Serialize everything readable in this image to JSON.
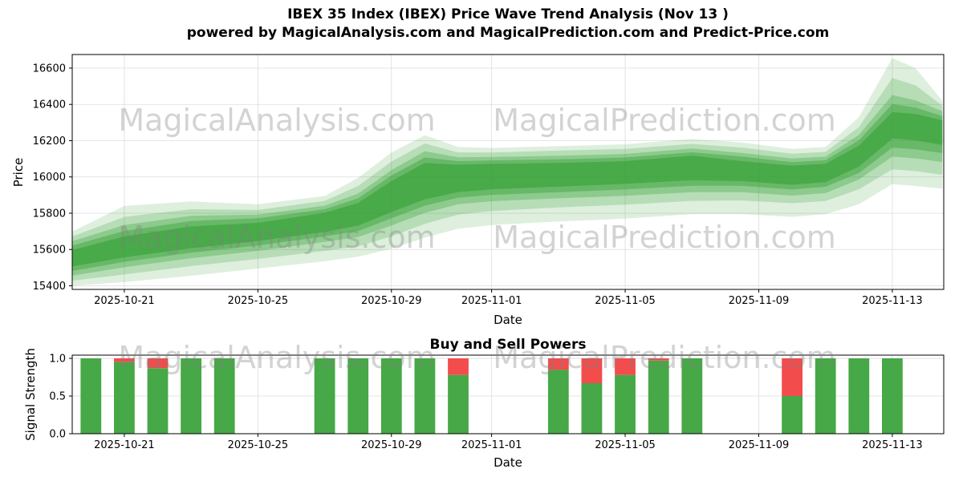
{
  "watermarks": {
    "left": "MagicalAnalysis.com",
    "right": "MagicalPrediction.com"
  },
  "chart_data": [
    {
      "type": "area",
      "title": "IBEX 35 Index (IBEX) Price Wave Trend Analysis (Nov 13 )",
      "subtitle": "powered by MagicalAnalysis.com and MagicalPrediction.com and Predict-Price.com",
      "xlabel": "Date",
      "ylabel": "Price",
      "x_unit": "days since 2025-10-19",
      "xlim": [
        0.44,
        26.54
      ],
      "ylim": [
        15380,
        16675
      ],
      "grid": true,
      "color": "#2f9e2f",
      "yticks": [
        15400,
        15600,
        15800,
        16000,
        16200,
        16400,
        16600
      ],
      "xticks": [
        {
          "t": 2,
          "label": "2025-10-21"
        },
        {
          "t": 6,
          "label": "2025-10-25"
        },
        {
          "t": 10,
          "label": "2025-10-29"
        },
        {
          "t": 13,
          "label": "2025-11-01"
        },
        {
          "t": 17,
          "label": "2025-11-05"
        },
        {
          "t": 21,
          "label": "2025-11-09"
        },
        {
          "t": 25,
          "label": "2025-11-13"
        }
      ],
      "bands": [
        {
          "name": "outer-band",
          "opacity": 0.16,
          "x": [
            0.45,
            2,
            4,
            6,
            8,
            9,
            10,
            11,
            12,
            13,
            15,
            17,
            19,
            20.5,
            22,
            23,
            24,
            25,
            25.7,
            26.5
          ],
          "upper": [
            15700,
            15840,
            15865,
            15850,
            15895,
            15995,
            16135,
            16230,
            16165,
            16160,
            16170,
            16180,
            16210,
            16190,
            16155,
            16165,
            16330,
            16655,
            16600,
            16420
          ],
          "lower": [
            15400,
            15420,
            15455,
            15495,
            15535,
            15560,
            15605,
            15665,
            15715,
            15735,
            15755,
            15770,
            15795,
            15795,
            15780,
            15795,
            15850,
            15960,
            15950,
            15935
          ]
        },
        {
          "name": "band-2",
          "opacity": 0.22,
          "x": [
            0.45,
            2,
            4,
            6,
            8,
            9,
            10,
            11,
            12,
            13,
            15,
            17,
            19,
            20.5,
            22,
            23,
            24,
            25,
            25.7,
            26.5
          ],
          "upper": [
            15672,
            15780,
            15822,
            15818,
            15868,
            15950,
            16085,
            16185,
            16135,
            16135,
            16145,
            16155,
            16182,
            16162,
            16128,
            16138,
            16275,
            16545,
            16505,
            16392
          ],
          "lower": [
            15428,
            15462,
            15508,
            15548,
            15592,
            15618,
            15672,
            15742,
            15792,
            15812,
            15832,
            15847,
            15868,
            15870,
            15855,
            15867,
            15932,
            16042,
            16032,
            16012
          ]
        },
        {
          "name": "band-3",
          "opacity": 0.3,
          "x": [
            0.45,
            2,
            4,
            6,
            8,
            9,
            10,
            11,
            12,
            13,
            15,
            17,
            19,
            20.5,
            22,
            23,
            24,
            25,
            25.7,
            26.5
          ],
          "upper": [
            15646,
            15735,
            15786,
            15792,
            15842,
            15908,
            16038,
            16142,
            16108,
            16110,
            16117,
            16127,
            16157,
            16132,
            16102,
            16112,
            16232,
            16452,
            16422,
            16362
          ],
          "lower": [
            15456,
            15502,
            15552,
            15592,
            15642,
            15668,
            15732,
            15802,
            15850,
            15866,
            15882,
            15896,
            15916,
            15916,
            15897,
            15911,
            15986,
            16112,
            16102,
            16082
          ]
        },
        {
          "name": "band-4",
          "opacity": 0.4,
          "x": [
            0.45,
            2,
            4,
            6,
            8,
            9,
            10,
            11,
            12,
            13,
            15,
            17,
            19,
            20.5,
            22,
            23,
            24,
            25,
            25.7,
            26.5
          ],
          "upper": [
            15622,
            15702,
            15757,
            15772,
            15822,
            15882,
            16008,
            16107,
            16087,
            16091,
            16097,
            16107,
            16136,
            16112,
            16082,
            16092,
            16202,
            16402,
            16382,
            16336
          ],
          "lower": [
            15482,
            15532,
            15582,
            15622,
            15672,
            15702,
            15772,
            15842,
            15886,
            15901,
            15916,
            15931,
            15951,
            15951,
            15931,
            15946,
            16022,
            16162,
            16152,
            16132
          ]
        },
        {
          "name": "core-band",
          "opacity": 0.55,
          "x": [
            0.45,
            2,
            4,
            6,
            8,
            9,
            10,
            11,
            12,
            13,
            15,
            17,
            19,
            20.5,
            22,
            23,
            24,
            25,
            25.7,
            26.5
          ],
          "upper": [
            15597,
            15672,
            15727,
            15747,
            15802,
            15857,
            15977,
            16077,
            16067,
            16072,
            16077,
            16087,
            16117,
            16087,
            16062,
            16072,
            16172,
            16357,
            16347,
            16312
          ],
          "lower": [
            15507,
            15557,
            15607,
            15647,
            15697,
            15732,
            15807,
            15877,
            15917,
            15932,
            15947,
            15962,
            15982,
            15977,
            15957,
            15972,
            16057,
            16212,
            16202,
            16177
          ]
        }
      ]
    },
    {
      "type": "bar",
      "title": "Buy and Sell Powers",
      "xlabel": "Date",
      "ylabel": "Signal Strength",
      "x_unit": "days since 2025-10-19",
      "xlim": [
        0.44,
        26.54
      ],
      "ylim": [
        0,
        1.043
      ],
      "grid": true,
      "yticks": [
        0,
        0.5,
        1
      ],
      "xticks": [
        {
          "t": 2,
          "label": "2025-10-21"
        },
        {
          "t": 6,
          "label": "2025-10-25"
        },
        {
          "t": 10,
          "label": "2025-10-29"
        },
        {
          "t": 13,
          "label": "2025-11-01"
        },
        {
          "t": 17,
          "label": "2025-11-05"
        },
        {
          "t": 21,
          "label": "2025-11-09"
        },
        {
          "t": 25,
          "label": "2025-11-13"
        }
      ],
      "bar_width": 0.62,
      "colors": {
        "buy": "#46a846",
        "sell": "#f24c4c"
      },
      "bars": [
        {
          "date": "2025-10-20",
          "t": 1,
          "buy": 1.0,
          "sell": 0.0
        },
        {
          "date": "2025-10-21",
          "t": 2,
          "buy": 0.95,
          "sell": 0.05
        },
        {
          "date": "2025-10-22",
          "t": 3,
          "buy": 0.87,
          "sell": 0.13
        },
        {
          "date": "2025-10-23",
          "t": 4,
          "buy": 1.0,
          "sell": 0.0
        },
        {
          "date": "2025-10-24",
          "t": 5,
          "buy": 1.0,
          "sell": 0.0
        },
        {
          "date": "2025-10-27",
          "t": 8,
          "buy": 1.0,
          "sell": 0.0
        },
        {
          "date": "2025-10-28",
          "t": 9,
          "buy": 1.0,
          "sell": 0.0
        },
        {
          "date": "2025-10-29",
          "t": 10,
          "buy": 1.0,
          "sell": 0.0
        },
        {
          "date": "2025-10-30",
          "t": 11,
          "buy": 1.0,
          "sell": 0.0
        },
        {
          "date": "2025-10-31",
          "t": 12,
          "buy": 0.78,
          "sell": 0.22
        },
        {
          "date": "2025-11-03",
          "t": 15,
          "buy": 0.85,
          "sell": 0.15
        },
        {
          "date": "2025-11-04",
          "t": 16,
          "buy": 0.67,
          "sell": 0.33
        },
        {
          "date": "2025-11-05",
          "t": 17,
          "buy": 0.78,
          "sell": 0.22
        },
        {
          "date": "2025-11-06",
          "t": 18,
          "buy": 0.97,
          "sell": 0.03
        },
        {
          "date": "2025-11-07",
          "t": 19,
          "buy": 1.0,
          "sell": 0.0
        },
        {
          "date": "2025-11-10",
          "t": 22,
          "buy": 0.5,
          "sell": 0.5
        },
        {
          "date": "2025-11-11",
          "t": 23,
          "buy": 1.0,
          "sell": 0.0
        },
        {
          "date": "2025-11-12",
          "t": 24,
          "buy": 1.0,
          "sell": 0.0
        },
        {
          "date": "2025-11-13",
          "t": 25,
          "buy": 1.0,
          "sell": 0.0
        }
      ]
    }
  ]
}
